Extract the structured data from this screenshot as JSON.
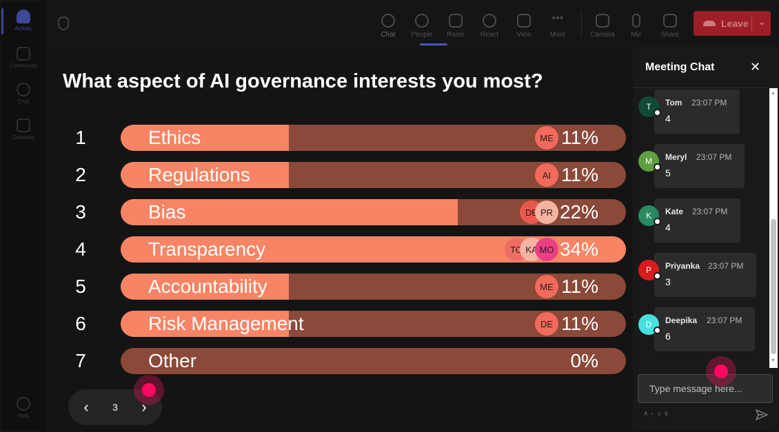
{
  "rail": {
    "items": [
      {
        "label": "Activity",
        "icon": "bell-icon"
      },
      {
        "label": "Community",
        "icon": "community-icon"
      },
      {
        "label": "Chat",
        "icon": "chat-icon"
      },
      {
        "label": "Calendar",
        "icon": "calendar-icon"
      },
      {
        "label": "Help",
        "icon": "help-icon"
      }
    ]
  },
  "toolbar": {
    "items": [
      {
        "label": "Chat",
        "icon": "chat-bubble-icon",
        "active": true
      },
      {
        "label": "People",
        "icon": "people-icon"
      },
      {
        "label": "Raise",
        "icon": "hand-icon"
      },
      {
        "label": "React",
        "icon": "smiley-icon"
      },
      {
        "label": "View",
        "icon": "grid-icon"
      },
      {
        "label": "More",
        "icon": "more-icon"
      },
      {
        "label": "Camera",
        "icon": "camera-off-icon"
      },
      {
        "label": "Mic",
        "icon": "mic-icon"
      },
      {
        "label": "Share",
        "icon": "share-icon"
      }
    ],
    "leave_label": "Leave"
  },
  "poll": {
    "question": "What aspect of AI governance interests you most?",
    "options": [
      {
        "num": "1",
        "label": "Ethics",
        "pct": "11%",
        "fraction": 0.11,
        "voters": [
          {
            "initials": "ME",
            "color": "#f26a5c"
          }
        ]
      },
      {
        "num": "2",
        "label": "Regulations",
        "pct": "11%",
        "fraction": 0.11,
        "voters": [
          {
            "initials": "AI",
            "color": "#f26a5c"
          }
        ]
      },
      {
        "num": "3",
        "label": "Bias",
        "pct": "22%",
        "fraction": 0.22,
        "voters": [
          {
            "initials": "DE",
            "color": "#e9584e"
          },
          {
            "initials": "PR",
            "color": "#f6b4a0"
          }
        ]
      },
      {
        "num": "4",
        "label": "Transparency",
        "pct": "34%",
        "fraction": 0.34,
        "voters": [
          {
            "initials": "TO",
            "color": "#ee6e66"
          },
          {
            "initials": "KA",
            "color": "#f7b3a2"
          },
          {
            "initials": "MO",
            "color": "#e94085"
          }
        ]
      },
      {
        "num": "5",
        "label": "Accountability",
        "pct": "11%",
        "fraction": 0.11,
        "voters": [
          {
            "initials": "ME",
            "color": "#f26a5c"
          }
        ]
      },
      {
        "num": "6",
        "label": "Risk Management",
        "pct": "11%",
        "fraction": 0.11,
        "voters": [
          {
            "initials": "DE",
            "color": "#f26a5c"
          }
        ]
      },
      {
        "num": "7",
        "label": "Other",
        "pct": "0%",
        "fraction": 0,
        "voters": []
      }
    ],
    "page": "3",
    "prev_icon": "chevron-left-icon",
    "next_icon": "chevron-right-icon"
  },
  "chat": {
    "title": "Meeting Chat",
    "close_icon": "close-icon",
    "messages": [
      {
        "initial": "T",
        "name": "Tom",
        "time": "23:07 PM",
        "text": "4",
        "color": "#0f4a35"
      },
      {
        "initial": "M",
        "name": "Meryl",
        "time": "23:07 PM",
        "text": "5",
        "color": "#5fa041"
      },
      {
        "initial": "K",
        "name": "Kate",
        "time": "23:07 PM",
        "text": "4",
        "color": "#2a8a62"
      },
      {
        "initial": "P",
        "name": "Priyanka",
        "time": "23:07 PM",
        "text": "3",
        "color": "#d91b1b"
      },
      {
        "initial": "D",
        "name": "Deepika",
        "time": "23:07 PM",
        "text": "6",
        "color": "#47e0e0"
      }
    ],
    "input_placeholder": "Type message here...",
    "send_icon": "send-icon"
  },
  "colors": {
    "fill": "#f78464",
    "track": "#8a4939",
    "leave": "#9e1e28",
    "accent": "#4c57b6"
  }
}
